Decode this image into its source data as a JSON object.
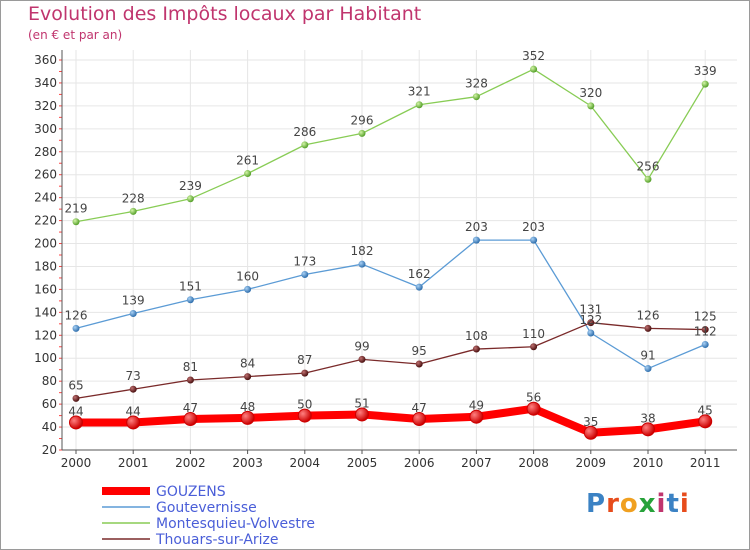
{
  "title": "Evolution des Impôts locaux par Habitant",
  "subtitle": "(en € et par an)",
  "logo": {
    "text": "Proxiti",
    "colors": [
      "#3b82c4",
      "#e74c1c",
      "#f0a020",
      "#27a23a",
      "#c0356e",
      "#3b82c4",
      "#e74c1c"
    ]
  },
  "chart_data": {
    "type": "line",
    "x": [
      "2000",
      "2001",
      "2002",
      "2003",
      "2004",
      "2005",
      "2006",
      "2007",
      "2008",
      "2009",
      "2010",
      "2011"
    ],
    "ylim": [
      20,
      360
    ],
    "yticks": [
      20,
      40,
      60,
      80,
      100,
      120,
      140,
      160,
      180,
      200,
      220,
      240,
      260,
      280,
      300,
      320,
      340,
      360
    ],
    "grid": true,
    "legend": "bottom-left",
    "series": [
      {
        "name": "GOUZENS",
        "color": "#ff0000",
        "values": [
          44,
          44,
          47,
          48,
          50,
          51,
          47,
          49,
          56,
          35,
          38,
          45
        ],
        "labels": [
          "44",
          "44",
          "47",
          "48",
          "50",
          "51",
          "47",
          "49",
          "56",
          "35",
          "38",
          "45"
        ]
      },
      {
        "name": "Goutevernisse",
        "color": "#5b9bd5",
        "values": [
          126,
          139,
          151,
          160,
          173,
          182,
          162,
          203,
          203,
          122,
          91,
          112
        ],
        "labels": [
          "126",
          "139",
          "151",
          "160",
          "173",
          "182",
          "162",
          "203",
          "203",
          "122",
          "91",
          "112"
        ]
      },
      {
        "name": "Montesquieu-Volvestre",
        "color": "#88cc55",
        "values": [
          219,
          228,
          239,
          261,
          286,
          296,
          321,
          328,
          352,
          320,
          256,
          339
        ],
        "labels": [
          "219",
          "228",
          "239",
          "261",
          "286",
          "296",
          "321",
          "328",
          "352",
          "320",
          "256",
          "339"
        ]
      },
      {
        "name": "Thouars-sur-Arize",
        "color": "#7a2a2a",
        "values": [
          65,
          73,
          81,
          84,
          87,
          99,
          95,
          108,
          110,
          131,
          126,
          125
        ],
        "labels": [
          "65",
          "73",
          "81",
          "84",
          "87",
          "99",
          "95",
          "108",
          "110",
          "131",
          "126",
          "125"
        ]
      }
    ]
  }
}
